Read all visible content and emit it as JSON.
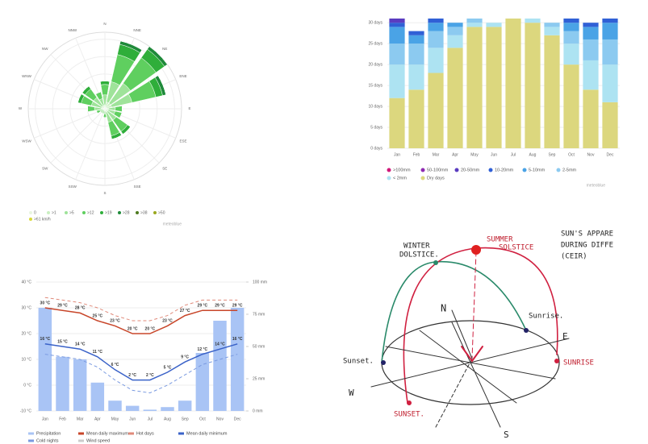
{
  "chart_data": [
    {
      "type": "wind-rose",
      "directions": [
        "N",
        "NNE",
        "NE",
        "ENE",
        "E",
        "ESE",
        "SE",
        "SSE",
        "S",
        "SSW",
        "SW",
        "WSW",
        "W",
        "WNW",
        "NW",
        "NNW"
      ],
      "series": [
        {
          "name": "0",
          "color": "#e8f5e0",
          "values": [
            0,
            0,
            0,
            0,
            0,
            0,
            0,
            0,
            0,
            0,
            0,
            0,
            0,
            0,
            0,
            0
          ]
        },
        {
          "name": ">1",
          "color": "#c9efc0",
          "values": [
            1,
            2,
            2,
            2,
            1,
            1,
            1,
            1,
            0.5,
            0.5,
            0.5,
            0.5,
            1,
            1,
            1,
            1
          ]
        },
        {
          "name": ">5",
          "color": "#9fe39a",
          "values": [
            3,
            6,
            7,
            6,
            2,
            2,
            3,
            3,
            1,
            1,
            1,
            1,
            2,
            3,
            3,
            2
          ]
        },
        {
          "name": ">12",
          "color": "#5fcf5f",
          "values": [
            3,
            8,
            9,
            7,
            2,
            2,
            4,
            4,
            1,
            0,
            0,
            1,
            2,
            3,
            3,
            2
          ]
        },
        {
          "name": ">19",
          "color": "#2fae3a",
          "values": [
            1,
            3,
            3,
            2,
            0,
            0,
            1,
            1,
            0,
            0,
            0,
            0,
            0,
            1,
            1,
            0
          ]
        },
        {
          "name": ">28",
          "color": "#1f8a3a",
          "values": [
            0,
            1,
            1,
            1,
            0,
            0,
            0,
            0,
            0,
            0,
            0,
            0,
            0,
            0,
            0,
            0
          ]
        },
        {
          "name": ">38",
          "color": "#4d7a1f",
          "values": [
            0,
            0,
            0,
            0,
            0,
            0,
            0,
            0,
            0,
            0,
            0,
            0,
            0,
            0,
            0,
            0
          ]
        },
        {
          "name": ">50",
          "color": "#9aa81f",
          "values": [
            0,
            0,
            0,
            0,
            0,
            0,
            0,
            0,
            0,
            0,
            0,
            0,
            0,
            0,
            0,
            0
          ]
        },
        {
          "name": ">61 km/h",
          "color": "#d8d83a",
          "values": [
            0,
            0,
            0,
            0,
            0,
            0,
            0,
            0,
            0,
            0,
            0,
            0,
            0,
            0,
            0,
            0
          ]
        }
      ],
      "rlim": [
        0,
        22
      ],
      "rticks": [
        5,
        10,
        15,
        20
      ],
      "note": "meteoblue"
    },
    {
      "type": "stacked-bar",
      "categories": [
        "Jan",
        "Feb",
        "Mar",
        "Apr",
        "May",
        "Jun",
        "Jul",
        "Aug",
        "Sep",
        "Oct",
        "Nov",
        "Dec"
      ],
      "series": [
        {
          "name": "Dry days",
          "color": "#dcd77e",
          "values": [
            12,
            14,
            18,
            24,
            29,
            29,
            31,
            30,
            27,
            20,
            14,
            11
          ]
        },
        {
          "name": "< 2mm",
          "color": "#ade3f2",
          "values": [
            8,
            6,
            6,
            3,
            1,
            1,
            0,
            1,
            2,
            5,
            7,
            9
          ]
        },
        {
          "name": "2-5mm",
          "color": "#8ccaf0",
          "values": [
            5,
            5,
            4,
            2,
            1,
            0,
            0,
            0,
            1,
            3,
            5,
            6
          ]
        },
        {
          "name": "5-10mm",
          "color": "#4aa3e6",
          "values": [
            4,
            2,
            2,
            1,
            0,
            0,
            0,
            0,
            0,
            2,
            3,
            4
          ]
        },
        {
          "name": "10-20mm",
          "color": "#3060d6",
          "values": [
            1,
            1,
            1,
            0,
            0,
            0,
            0,
            0,
            0,
            1,
            1,
            1
          ]
        },
        {
          "name": "20-50mm",
          "color": "#5a3cc0",
          "values": [
            1,
            0,
            0,
            0,
            0,
            0,
            0,
            0,
            0,
            0,
            0,
            0
          ]
        },
        {
          "name": "50-100mm",
          "color": "#8e2ab2",
          "values": [
            0,
            0,
            0,
            0,
            0,
            0,
            0,
            0,
            0,
            0,
            0,
            0
          ]
        },
        {
          "name": ">100mm",
          "color": "#d0197a",
          "values": [
            0,
            0,
            0,
            0,
            0,
            0,
            0,
            0,
            0,
            0,
            0,
            0
          ]
        }
      ],
      "ylim": [
        0,
        31
      ],
      "yticks": [
        {
          "value": 0,
          "label": "0 days"
        },
        {
          "value": 5,
          "label": "5 days"
        },
        {
          "value": 10,
          "label": "10 days"
        },
        {
          "value": 15,
          "label": "15 days"
        },
        {
          "value": 20,
          "label": "20 days"
        },
        {
          "value": 25,
          "label": "25 days"
        },
        {
          "value": 30,
          "label": "30 days"
        }
      ],
      "note": "meteoblue"
    },
    {
      "type": "bar-line",
      "categories": [
        "Jan",
        "Feb",
        "Mar",
        "Apr",
        "May",
        "Jun",
        "Jul",
        "Aug",
        "Sep",
        "Oct",
        "Nov",
        "Dec"
      ],
      "series": [
        {
          "name": "Precipitation",
          "kind": "bar",
          "axis": "y2",
          "color": "#a9c4f5",
          "values": [
            80,
            42,
            40,
            22,
            8,
            4,
            1,
            3,
            8,
            45,
            70,
            80
          ]
        },
        {
          "name": "Mean daily maximum",
          "kind": "line",
          "color": "#c8462a",
          "values": [
            30,
            29,
            28,
            25,
            23,
            20,
            20,
            23,
            27,
            29,
            29,
            29
          ],
          "value_labels": [
            "30 °C",
            "29 °C",
            "28 °C",
            "25 °C",
            "23 °C",
            "20 °C",
            "20 °C",
            "23 °C",
            "27 °C",
            "29 °C",
            "29 °C",
            "29 °C"
          ]
        },
        {
          "name": "Hot days",
          "kind": "dashed",
          "color": "#e08a7a",
          "values": [
            34,
            33,
            32,
            30,
            27,
            25,
            25,
            27,
            31,
            33,
            33,
            33
          ]
        },
        {
          "name": "Mean daily minimum",
          "kind": "line",
          "color": "#3a62c8",
          "values": [
            16,
            15,
            14,
            11,
            6,
            2,
            2,
            5,
            9,
            12,
            14,
            16
          ],
          "value_labels": [
            "16 °C",
            "15 °C",
            "14 °C",
            "11 °C",
            "6 °C",
            "2 °C",
            "2 °C",
            "5 °C",
            "9 °C",
            "12 °C",
            "14 °C",
            "16 °C"
          ]
        },
        {
          "name": "Cold nights",
          "kind": "dashed",
          "color": "#7a9ae0",
          "values": [
            12,
            11,
            10,
            7,
            2,
            -2,
            -3,
            0,
            4,
            8,
            10,
            12
          ]
        }
      ],
      "legend_extra": [
        "Wind speed"
      ],
      "ylim": [
        -10,
        40
      ],
      "yticks": [
        {
          "value": -10,
          "label": "-10 °C"
        },
        {
          "value": 0,
          "label": "0 °C"
        },
        {
          "value": 10,
          "label": "10 °C"
        },
        {
          "value": 20,
          "label": "20 °C"
        },
        {
          "value": 30,
          "label": "30 °C"
        },
        {
          "value": 40,
          "label": "40 °C"
        }
      ],
      "y2lim": [
        0,
        100
      ],
      "y2ticks": [
        {
          "value": 0,
          "label": "0 mm"
        },
        {
          "value": 25,
          "label": "25 mm"
        },
        {
          "value": 50,
          "label": "50 mm"
        },
        {
          "value": 75,
          "label": "75 mm"
        },
        {
          "value": 100,
          "label": "100 mm"
        }
      ]
    }
  ],
  "diagram": {
    "title_lines": [
      "SUN'S APPARE",
      "DURING DIFFE",
      "(CEIR)"
    ],
    "winter": [
      "WINTER",
      "DOLSTICE."
    ],
    "summer": [
      "SUMMER",
      "SOLSTICE"
    ],
    "west_sunset": "Sunset.",
    "sunrise": "SUNRISE",
    "bottom_sunset": "SUNSET.",
    "winter_sunrise": "Sunrise.",
    "north": "N",
    "west": "W",
    "south": "S",
    "east": "E"
  }
}
